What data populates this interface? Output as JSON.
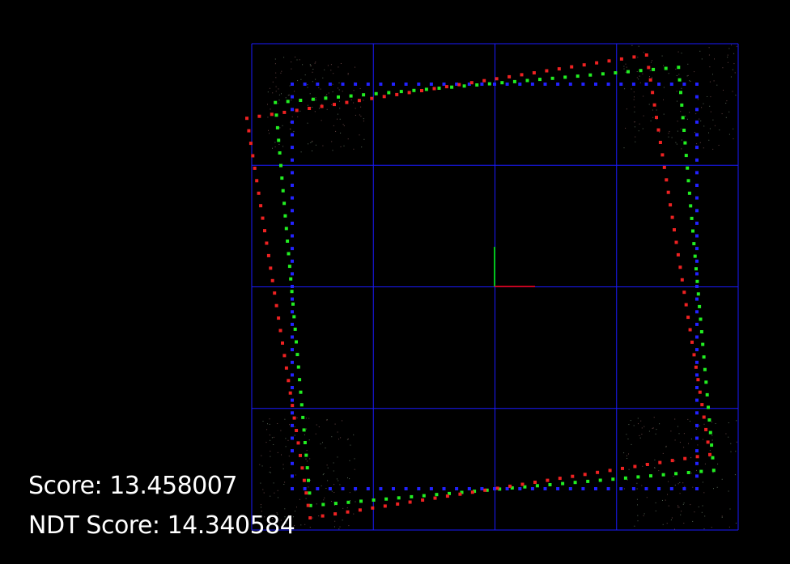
{
  "hud": {
    "score_label": "Score:",
    "score_value": "13.458007",
    "ndt_label": "NDT Score:",
    "ndt_value": "14.340584"
  },
  "colors": {
    "background": "#000000",
    "grid": "#1a1aff",
    "target_cloud": "#2222ff",
    "aligned_cloud": "#22ee22",
    "source_cloud": "#ee2222",
    "axis_x": "#ff0000",
    "axis_y": "#00ff00",
    "text": "#ffffff"
  },
  "scene": {
    "grid_cells": 4,
    "target_square": {
      "half_size": 1.0,
      "rotation_deg": 0
    },
    "aligned_square": {
      "half_size": 1.0,
      "rotation_deg": -5,
      "offset": [
        0.0,
        0.0
      ]
    },
    "source_square": {
      "half_size": 1.0,
      "rotation_deg": -9,
      "offset": [
        -0.08,
        0.0
      ]
    },
    "points_per_side": 32
  }
}
